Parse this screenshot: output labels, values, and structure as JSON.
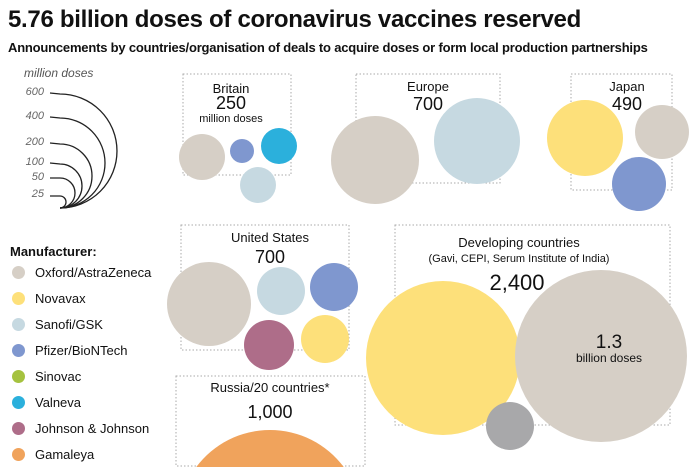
{
  "title": "5.76 billion doses of coronavirus vaccines reserved",
  "subtitle": "Announcements by countries/organisation of deals to acquire doses or form local production partnerships",
  "scale": {
    "title": "million doses",
    "values": [
      "600",
      "400",
      "200",
      "100",
      "50",
      "25"
    ]
  },
  "legend": {
    "title": "Manufacturer:",
    "items": [
      {
        "label": "Oxford/AstraZeneca",
        "color": "#d6cfc6"
      },
      {
        "label": "Novavax",
        "color": "#fde07a"
      },
      {
        "label": "Sanofi/GSK",
        "color": "#c6d9e1"
      },
      {
        "label": "Pfizer/BioNTech",
        "color": "#7f97cf"
      },
      {
        "label": "Sinovac",
        "color": "#a5c23f"
      },
      {
        "label": "Valneva",
        "color": "#2bb0dc"
      },
      {
        "label": "Johnson & Johnson",
        "color": "#ae6d89"
      },
      {
        "label": "Gamaleya",
        "color": "#f0a35c"
      }
    ]
  },
  "chart_data": {
    "type": "bubble",
    "title": "5.76 billion doses of coronavirus vaccines reserved",
    "unit": "million doses",
    "total": "5.76 billion",
    "groups": [
      {
        "name": "Britain",
        "total": "250",
        "unit_label": "million doses",
        "manufacturers": [
          "Oxford/AstraZeneca",
          "Pfizer/BioNTech",
          "Valneva",
          "Sanofi/GSK"
        ]
      },
      {
        "name": "Europe",
        "total": "700",
        "manufacturers": [
          "Oxford/AstraZeneca",
          "Sanofi/GSK"
        ]
      },
      {
        "name": "Japan",
        "total": "490",
        "manufacturers": [
          "Novavax",
          "Oxford/AstraZeneca",
          "Pfizer/BioNTech"
        ]
      },
      {
        "name": "United States",
        "total": "700",
        "manufacturers": [
          "Oxford/AstraZeneca",
          "Sanofi/GSK",
          "Pfizer/BioNTech",
          "Johnson & Johnson",
          "Novavax"
        ]
      },
      {
        "name": "Developing countries",
        "note": "(Gavi, CEPI, Serum Institute of India)",
        "total": "2,400",
        "manufacturers": [
          "Novavax",
          "Oxford/AstraZeneca",
          "Other"
        ],
        "callout": {
          "value": "1.3",
          "unit": "billion doses"
        }
      },
      {
        "name": "Russia/20 countries*",
        "total": "1,000",
        "manufacturers": [
          "Gamaleya"
        ]
      }
    ]
  }
}
